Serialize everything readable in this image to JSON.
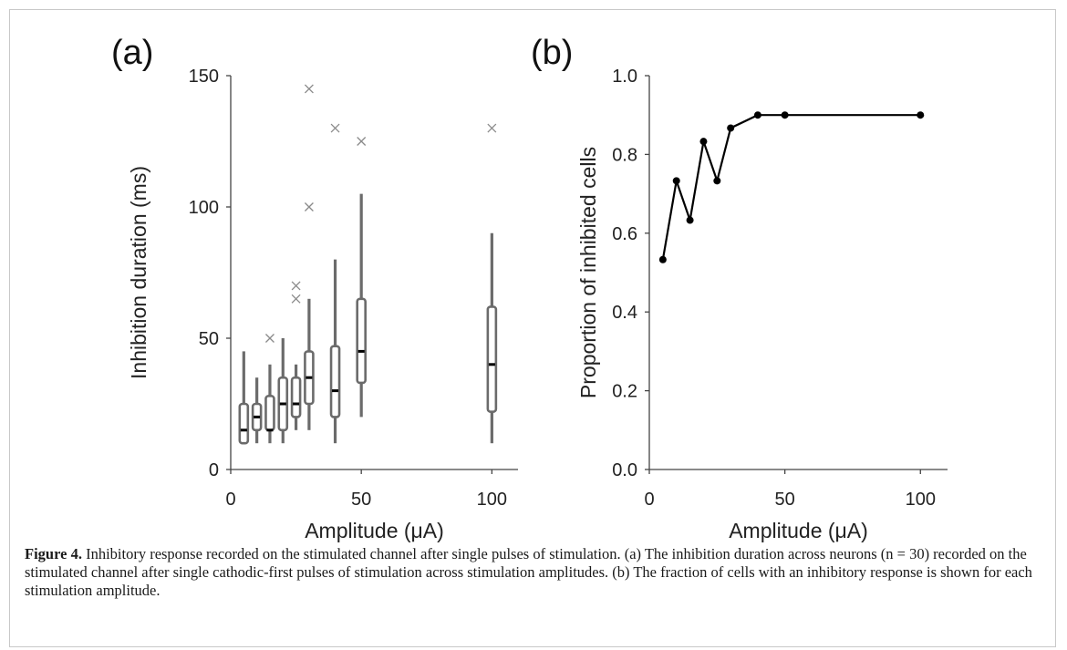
{
  "chart_data": [
    {
      "type": "box",
      "panel_label": "(a)",
      "xlabel": "Amplitude (μA)",
      "ylabel": "Inhibition duration (ms)",
      "xlim": [
        0,
        110
      ],
      "ylim": [
        0,
        150
      ],
      "xticks": [
        0,
        50,
        100
      ],
      "yticks": [
        0,
        50,
        100,
        150
      ],
      "color": "#6b6b6b",
      "boxes": [
        {
          "x": 5,
          "min": 10,
          "q1": 10,
          "median": 15,
          "q3": 25,
          "max": 45,
          "outliers": []
        },
        {
          "x": 10,
          "min": 10,
          "q1": 15,
          "median": 20,
          "q3": 25,
          "max": 35,
          "outliers": []
        },
        {
          "x": 15,
          "min": 10,
          "q1": 15,
          "median": 15,
          "q3": 28,
          "max": 40,
          "outliers": [
            50
          ]
        },
        {
          "x": 20,
          "min": 10,
          "q1": 15,
          "median": 25,
          "q3": 35,
          "max": 50,
          "outliers": []
        },
        {
          "x": 25,
          "min": 15,
          "q1": 20,
          "median": 25,
          "q3": 35,
          "max": 40,
          "outliers": [
            65,
            70
          ]
        },
        {
          "x": 30,
          "min": 15,
          "q1": 25,
          "median": 35,
          "q3": 45,
          "max": 65,
          "outliers": [
            100,
            145
          ]
        },
        {
          "x": 40,
          "min": 10,
          "q1": 20,
          "median": 30,
          "q3": 47,
          "max": 80,
          "outliers": [
            130
          ]
        },
        {
          "x": 50,
          "min": 20,
          "q1": 33,
          "median": 45,
          "q3": 65,
          "max": 105,
          "outliers": [
            125
          ]
        },
        {
          "x": 100,
          "min": 10,
          "q1": 22,
          "median": 40,
          "q3": 62,
          "max": 90,
          "outliers": [
            130
          ]
        }
      ]
    },
    {
      "type": "line",
      "panel_label": "(b)",
      "xlabel": "Amplitude (μA)",
      "ylabel": "Proportion of inhibited cells",
      "xlim": [
        0,
        110
      ],
      "ylim": [
        0,
        1.0
      ],
      "xticks": [
        0,
        50,
        100
      ],
      "yticks": [
        "0.0",
        "0.2",
        "0.4",
        "0.6",
        "0.8",
        "1.0"
      ],
      "color": "#000000",
      "x": [
        5,
        10,
        15,
        20,
        25,
        30,
        40,
        50,
        100
      ],
      "y": [
        0.533,
        0.733,
        0.633,
        0.833,
        0.733,
        0.867,
        0.9,
        0.9,
        0.9
      ]
    }
  ],
  "caption": {
    "label": "Figure 4.",
    "text": " Inhibitory response recorded on the stimulated channel after single pulses of stimulation. (a) The inhibition duration across neurons (n = 30) recorded on the stimulated channel after single cathodic-first pulses of stimulation across stimulation amplitudes. (b) The fraction of cells with an inhibitory response is shown for each stimulation amplitude."
  }
}
